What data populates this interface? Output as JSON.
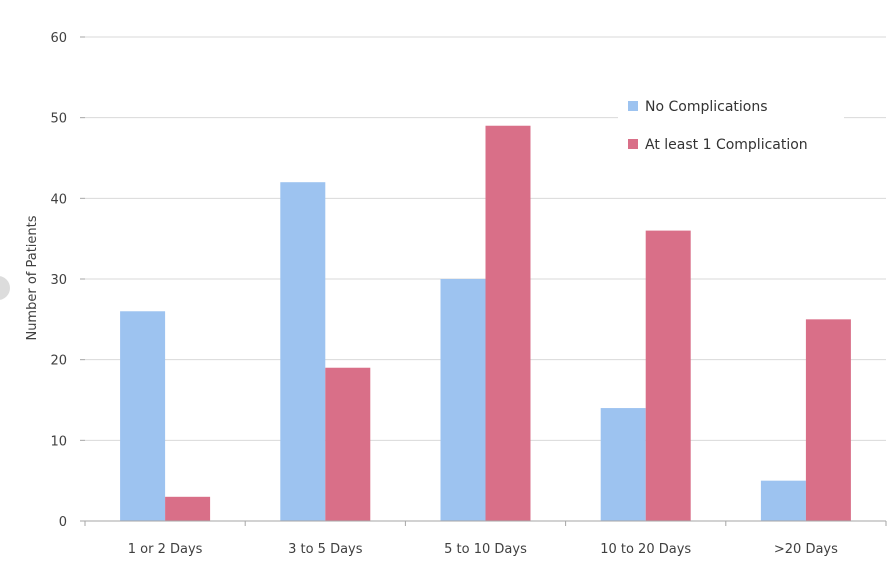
{
  "chart_data": {
    "type": "bar",
    "ylabel": "Number of Patients",
    "xlabel": "",
    "ylim": [
      0,
      60
    ],
    "yticks": [
      "0",
      "10",
      "20",
      "30",
      "40",
      "50",
      "60"
    ],
    "grid": true,
    "legend_position": "top-right",
    "categories": [
      "1 or 2 Days",
      "3 to 5 Days",
      "5 to 10 Days",
      "10 to 20 Days",
      ">20 Days"
    ],
    "series": [
      {
        "name": "No Complications",
        "color": "#9dc3f0",
        "values": [
          26,
          42,
          30,
          14,
          5
        ]
      },
      {
        "name": "At least 1 Complication",
        "color": "#d96f88",
        "values": [
          3,
          19,
          49,
          36,
          25
        ]
      }
    ]
  }
}
